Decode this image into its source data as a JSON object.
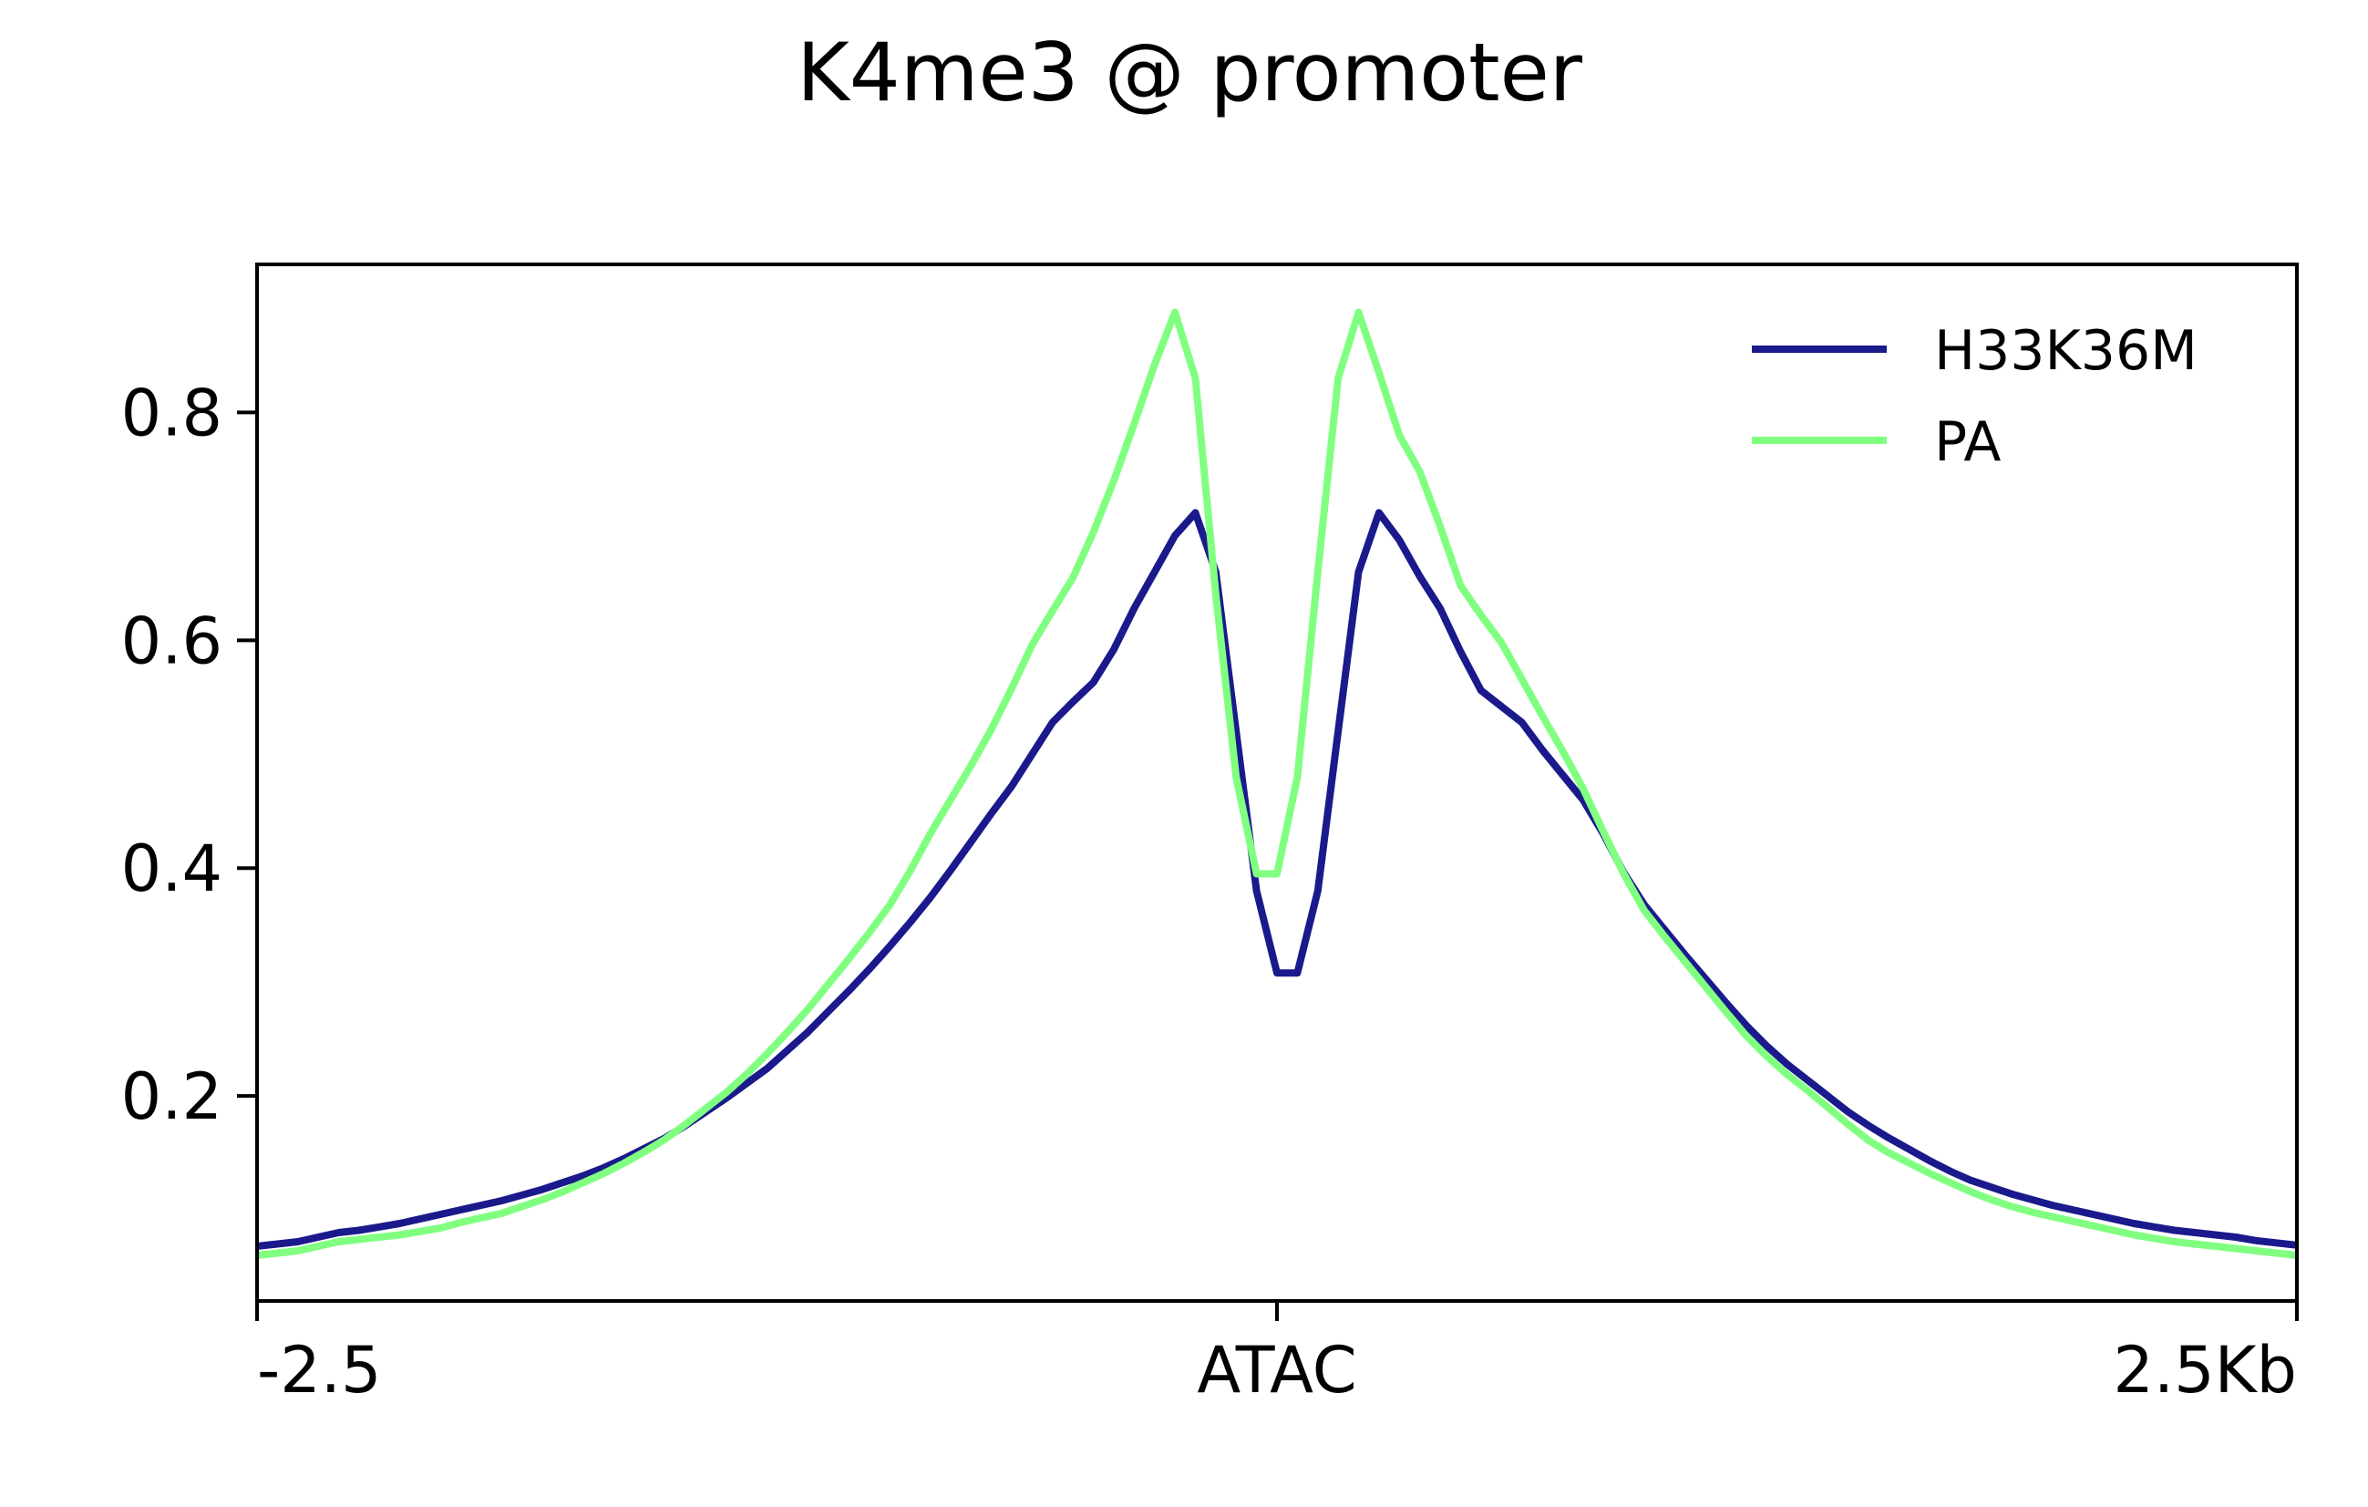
{
  "chart_data": {
    "type": "line",
    "title": "K4me3 @ promoter",
    "xlabel": "",
    "ylabel": "",
    "x_tick_labels": [
      "-2.5",
      "ATAC",
      "2.5Kb"
    ],
    "x_tick_positions": [
      -2.5,
      0,
      2.5
    ],
    "xlim": [
      -2.5,
      2.5
    ],
    "ylim": [
      0.02,
      0.93
    ],
    "y_ticks": [
      0.2,
      0.4,
      0.6,
      0.8
    ],
    "y_tick_labels": [
      "0.2",
      "0.4",
      "0.6",
      "0.8"
    ],
    "grid": false,
    "legend_position": "top-right",
    "x_units": "kb from ATAC summit",
    "x": [
      -2.5,
      -2.45,
      -2.4,
      -2.35,
      -2.3,
      -2.25,
      -2.2,
      -2.15,
      -2.1,
      -2.05,
      -2.0,
      -1.95,
      -1.9,
      -1.85,
      -1.8,
      -1.75,
      -1.7,
      -1.65,
      -1.6,
      -1.55,
      -1.5,
      -1.45,
      -1.4,
      -1.35,
      -1.3,
      -1.25,
      -1.2,
      -1.15,
      -1.1,
      -1.05,
      -1.0,
      -0.95,
      -0.9,
      -0.85,
      -0.8,
      -0.75,
      -0.7,
      -0.65,
      -0.6,
      -0.55,
      -0.5,
      -0.45,
      -0.4,
      -0.35,
      -0.3,
      -0.25,
      -0.2,
      -0.15,
      -0.1,
      -0.05,
      0.0,
      0.05,
      0.1,
      0.15,
      0.2,
      0.25,
      0.3,
      0.35,
      0.4,
      0.45,
      0.5,
      0.55,
      0.6,
      0.65,
      0.7,
      0.75,
      0.8,
      0.85,
      0.9,
      0.95,
      1.0,
      1.05,
      1.1,
      1.15,
      1.2,
      1.25,
      1.3,
      1.35,
      1.4,
      1.45,
      1.5,
      1.55,
      1.6,
      1.65,
      1.7,
      1.75,
      1.8,
      1.85,
      1.9,
      1.95,
      2.0,
      2.05,
      2.1,
      2.15,
      2.2,
      2.25,
      2.3,
      2.35,
      2.4,
      2.45,
      2.5
    ],
    "series": [
      {
        "name": "H33K36M",
        "color": "#1a1a8c",
        "values": [
          0.068,
          0.07,
          0.072,
          0.076,
          0.08,
          0.082,
          0.085,
          0.088,
          0.092,
          0.096,
          0.1,
          0.104,
          0.108,
          0.113,
          0.118,
          0.124,
          0.13,
          0.137,
          0.145,
          0.154,
          0.163,
          0.174,
          0.186,
          0.198,
          0.211,
          0.224,
          0.24,
          0.256,
          0.274,
          0.292,
          0.311,
          0.331,
          0.352,
          0.374,
          0.398,
          0.423,
          0.448,
          0.472,
          0.5,
          0.528,
          0.546,
          0.563,
          0.592,
          0.628,
          0.66,
          0.692,
          0.712,
          0.66,
          0.52,
          0.38,
          0.308,
          0.308,
          0.38,
          0.52,
          0.66,
          0.712,
          0.688,
          0.656,
          0.628,
          0.59,
          0.556,
          0.542,
          0.528,
          0.504,
          0.482,
          0.46,
          0.43,
          0.396,
          0.368,
          0.346,
          0.324,
          0.303,
          0.282,
          0.262,
          0.244,
          0.228,
          0.214,
          0.2,
          0.186,
          0.174,
          0.163,
          0.153,
          0.143,
          0.134,
          0.126,
          0.12,
          0.114,
          0.109,
          0.104,
          0.1,
          0.096,
          0.092,
          0.088,
          0.085,
          0.082,
          0.08,
          0.078,
          0.076,
          0.073,
          0.071,
          0.069
        ]
      },
      {
        "name": "PA",
        "color": "#80ff80",
        "values": [
          0.06,
          0.062,
          0.064,
          0.068,
          0.072,
          0.074,
          0.076,
          0.078,
          0.081,
          0.084,
          0.089,
          0.093,
          0.097,
          0.103,
          0.109,
          0.116,
          0.124,
          0.132,
          0.141,
          0.151,
          0.162,
          0.175,
          0.189,
          0.203,
          0.219,
          0.237,
          0.256,
          0.276,
          0.298,
          0.32,
          0.343,
          0.367,
          0.397,
          0.43,
          0.46,
          0.49,
          0.522,
          0.558,
          0.596,
          0.626,
          0.655,
          0.695,
          0.74,
          0.79,
          0.842,
          0.888,
          0.83,
          0.64,
          0.48,
          0.395,
          0.395,
          0.48,
          0.66,
          0.83,
          0.888,
          0.835,
          0.78,
          0.748,
          0.7,
          0.648,
          0.622,
          0.598,
          0.566,
          0.534,
          0.503,
          0.47,
          0.432,
          0.395,
          0.363,
          0.34,
          0.318,
          0.296,
          0.274,
          0.253,
          0.235,
          0.219,
          0.205,
          0.19,
          0.175,
          0.161,
          0.15,
          0.141,
          0.132,
          0.124,
          0.116,
          0.109,
          0.103,
          0.098,
          0.094,
          0.09,
          0.086,
          0.082,
          0.078,
          0.075,
          0.072,
          0.07,
          0.068,
          0.066,
          0.064,
          0.062,
          0.06
        ]
      }
    ]
  }
}
